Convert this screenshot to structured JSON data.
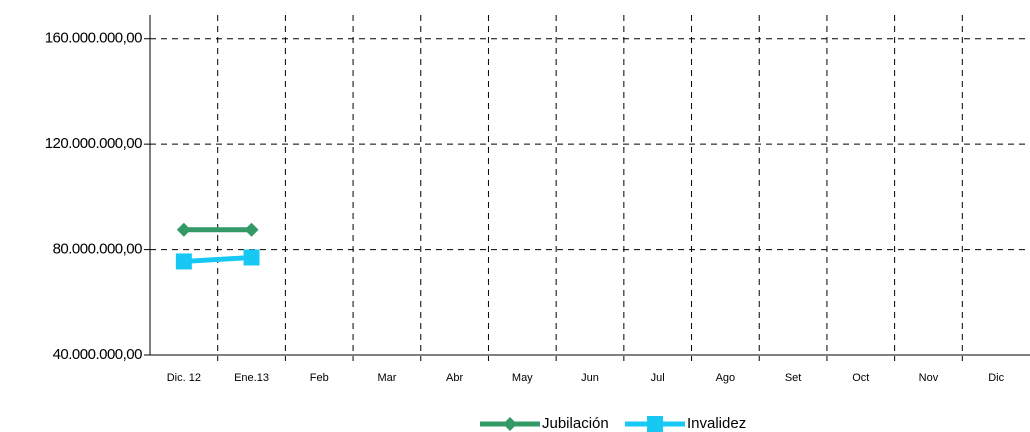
{
  "chart_data": {
    "type": "line",
    "categories": [
      "Dic. 12",
      "Ene.13",
      "Feb",
      "Mar",
      "Abr",
      "May",
      "Jun",
      "Jul",
      "Ago",
      "Set",
      "Oct",
      "Nov",
      "Dic"
    ],
    "series": [
      {
        "name": "Jubilación",
        "color": "#339966",
        "marker": "diamond",
        "values": [
          87500000,
          87500000,
          null,
          null,
          null,
          null,
          null,
          null,
          null,
          null,
          null,
          null,
          null
        ]
      },
      {
        "name": "Invalidez",
        "color": "#18c8f4",
        "marker": "square",
        "values": [
          75500000,
          77000000,
          null,
          null,
          null,
          null,
          null,
          null,
          null,
          null,
          null,
          null,
          null
        ]
      }
    ],
    "ylim": [
      40000000,
      169000000
    ],
    "yticks": [
      {
        "value": 40000000,
        "label": "40.000.000,00"
      },
      {
        "value": 80000000,
        "label": "80.000.000,00"
      },
      {
        "value": 120000000,
        "label": "120.000.000,00"
      },
      {
        "value": 160000000,
        "label": "160.000.000,00"
      }
    ],
    "grid": true
  }
}
